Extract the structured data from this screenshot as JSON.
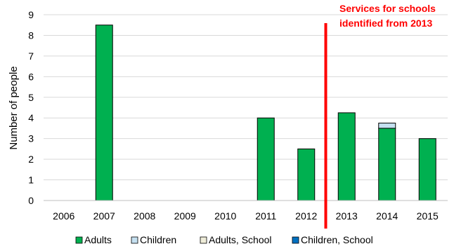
{
  "chart_data": {
    "type": "bar",
    "stacked": true,
    "categories": [
      "2006",
      "2007",
      "2008",
      "2009",
      "2010",
      "2011",
      "2012",
      "2013",
      "2014",
      "2015"
    ],
    "series": [
      {
        "name": "Adults",
        "color": "#00b050",
        "values": [
          0,
          8.5,
          0,
          0,
          0,
          4,
          2.5,
          4.25,
          3.5,
          3
        ]
      },
      {
        "name": "Children",
        "color": "#c5e0f0",
        "values": [
          0,
          0,
          0,
          0,
          0,
          0,
          0,
          0,
          0.25,
          0
        ]
      },
      {
        "name": "Adults, School",
        "color": "#eeecd8",
        "values": [
          0,
          0,
          0,
          0,
          0,
          0,
          0,
          0,
          0,
          0
        ]
      },
      {
        "name": "Children, School",
        "color": "#0070c0",
        "values": [
          0,
          0,
          0,
          0,
          0,
          0,
          0,
          0,
          0,
          0
        ]
      }
    ],
    "ylabel": "Number of people",
    "ylim": [
      0,
      9
    ],
    "yticks": [
      "0",
      "1",
      "2",
      "3",
      "4",
      "5",
      "6",
      "7",
      "8",
      "9"
    ],
    "grid": true,
    "legend_position": "bottom",
    "annotation": {
      "lines": [
        "Services for schools",
        "identified from 2013"
      ],
      "color": "#ff0000",
      "marker": "vertical line between 2012 and 2013"
    }
  }
}
